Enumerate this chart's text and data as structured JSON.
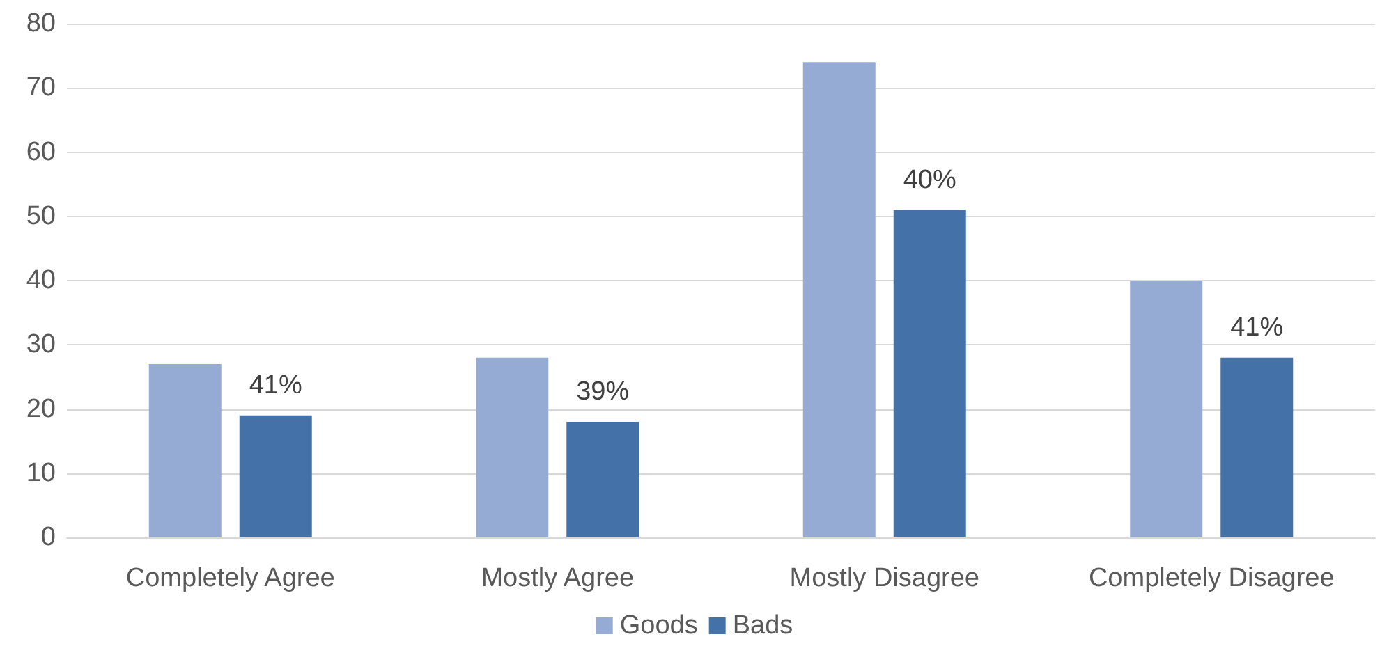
{
  "chart_data": {
    "type": "bar",
    "categories": [
      "Completely Agree",
      "Mostly Agree",
      "Mostly Disagree",
      "Completely Disagree"
    ],
    "series": [
      {
        "name": "Goods",
        "color": "#95abd4",
        "values": [
          27,
          28,
          74,
          40
        ]
      },
      {
        "name": "Bads",
        "color": "#4472a8",
        "values": [
          19,
          18,
          51,
          28
        ]
      }
    ],
    "annotations": [
      "41%",
      "39%",
      "40%",
      "41%"
    ],
    "ylim": [
      0,
      80
    ],
    "yticks": [
      0,
      10,
      20,
      30,
      40,
      50,
      60,
      70,
      80
    ],
    "grid": "y",
    "legend": "bottom"
  }
}
